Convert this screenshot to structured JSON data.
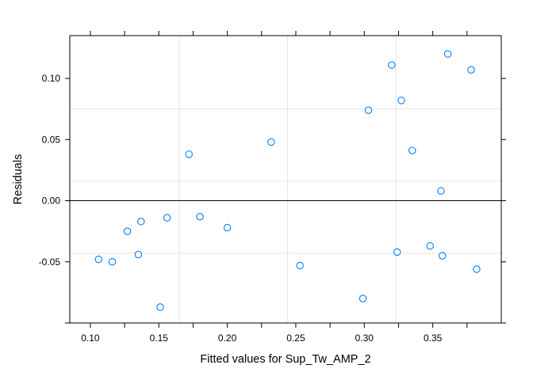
{
  "chart_data": {
    "type": "scatter",
    "xlabel": "Fitted values for Sup_Tw_AMP_2",
    "ylabel": "Residuals",
    "xlim": [
      0.085,
      0.4
    ],
    "ylim": [
      -0.1,
      0.135
    ],
    "x_ticks": [
      0.1,
      0.15,
      0.2,
      0.25,
      0.3,
      0.35
    ],
    "x_tick_labels": [
      "0.10",
      "0.15",
      "0.20",
      "0.25",
      "0.30",
      "0.35"
    ],
    "y_ticks": [
      -0.05,
      0.0,
      0.05,
      0.1
    ],
    "y_tick_labels": [
      "-0.05",
      "0.00",
      "0.05",
      "0.10"
    ],
    "reference_line_y": 0,
    "reference_grid_x": [
      0.165,
      0.244,
      0.323
    ],
    "reference_grid_y": [
      -0.043,
      0.016,
      0.075
    ],
    "colors": {
      "points": "#0080ff",
      "grid": "#e6e6e6",
      "axis": "#000000"
    },
    "points": [
      {
        "x": 0.106,
        "y": -0.048
      },
      {
        "x": 0.116,
        "y": -0.05
      },
      {
        "x": 0.127,
        "y": -0.025
      },
      {
        "x": 0.135,
        "y": -0.044
      },
      {
        "x": 0.137,
        "y": -0.017
      },
      {
        "x": 0.151,
        "y": -0.087
      },
      {
        "x": 0.156,
        "y": -0.014
      },
      {
        "x": 0.172,
        "y": 0.038
      },
      {
        "x": 0.18,
        "y": -0.013
      },
      {
        "x": 0.2,
        "y": -0.022
      },
      {
        "x": 0.232,
        "y": 0.048
      },
      {
        "x": 0.253,
        "y": -0.053
      },
      {
        "x": 0.299,
        "y": -0.08
      },
      {
        "x": 0.303,
        "y": 0.074
      },
      {
        "x": 0.32,
        "y": 0.111
      },
      {
        "x": 0.324,
        "y": -0.042
      },
      {
        "x": 0.327,
        "y": 0.082
      },
      {
        "x": 0.335,
        "y": 0.041
      },
      {
        "x": 0.348,
        "y": -0.037
      },
      {
        "x": 0.356,
        "y": 0.008
      },
      {
        "x": 0.357,
        "y": -0.045
      },
      {
        "x": 0.361,
        "y": 0.12
      },
      {
        "x": 0.378,
        "y": 0.107
      },
      {
        "x": 0.382,
        "y": -0.056
      }
    ]
  }
}
